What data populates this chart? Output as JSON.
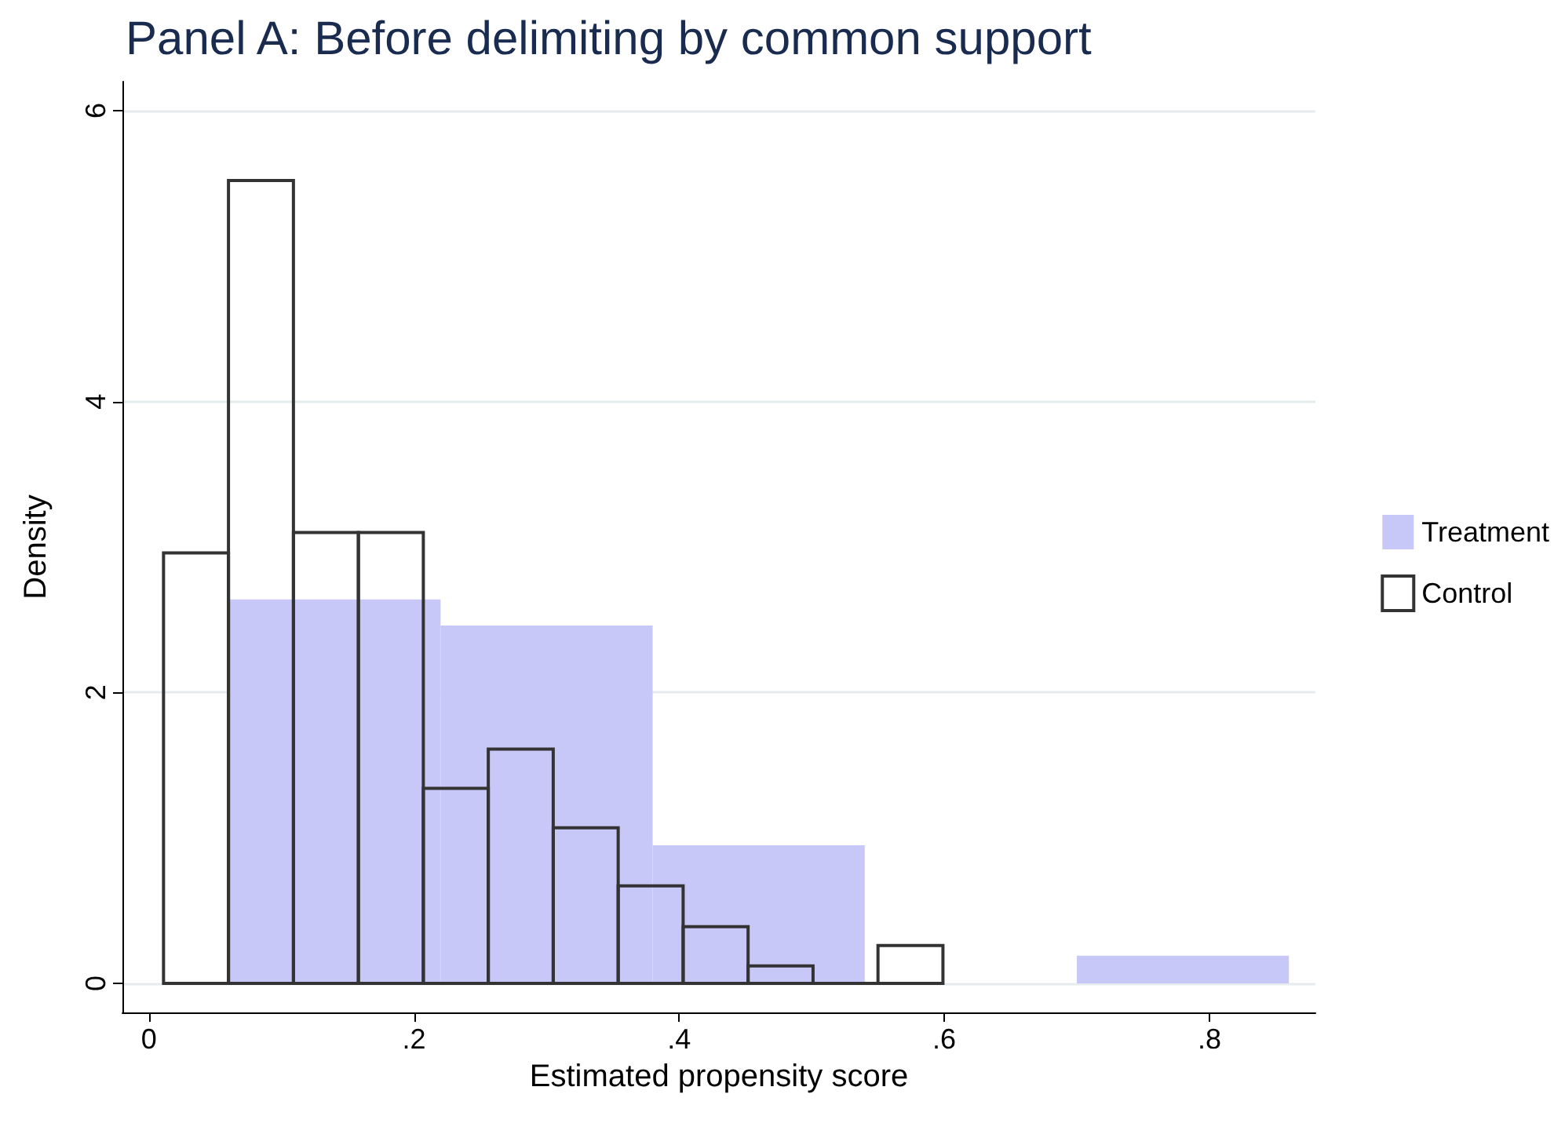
{
  "chart_data": {
    "type": "histogram",
    "title": "Panel A: Before delimiting by common support",
    "xlabel": "Estimated propensity score",
    "ylabel": "Density",
    "bins": [
      0.011,
      0.06,
      0.109,
      0.158,
      0.207,
      0.256,
      0.305,
      0.354,
      0.403,
      0.452,
      0.501,
      0.55,
      0.599
    ],
    "series": [
      {
        "name": "Treatment",
        "color": "#c8c8f8",
        "bins": [
          0.06,
          0.22,
          0.38,
          0.54,
          0.7,
          0.86
        ],
        "values": [
          2.64,
          2.46,
          0.95,
          0,
          0.19
        ]
      },
      {
        "name": "Control",
        "color": "#333333",
        "values": [
          2.96,
          5.52,
          3.1,
          3.1,
          1.34,
          1.61,
          1.07,
          0.67,
          0.39,
          0.12,
          0,
          0.26
        ]
      }
    ],
    "xlim": [
      -0.02,
      0.88
    ],
    "xticks": [
      0,
      {
        "value": 0.2,
        "label": ".2"
      },
      {
        "value": 0.4,
        "label": ".4"
      },
      {
        "value": 0.6,
        "label": ".6"
      },
      {
        "value": 0.8,
        "label": ".8"
      }
    ],
    "ylim": [
      -0.2,
      6.2
    ],
    "yticks": [
      0,
      2,
      4,
      6
    ],
    "grid": "y",
    "legend": "right"
  }
}
